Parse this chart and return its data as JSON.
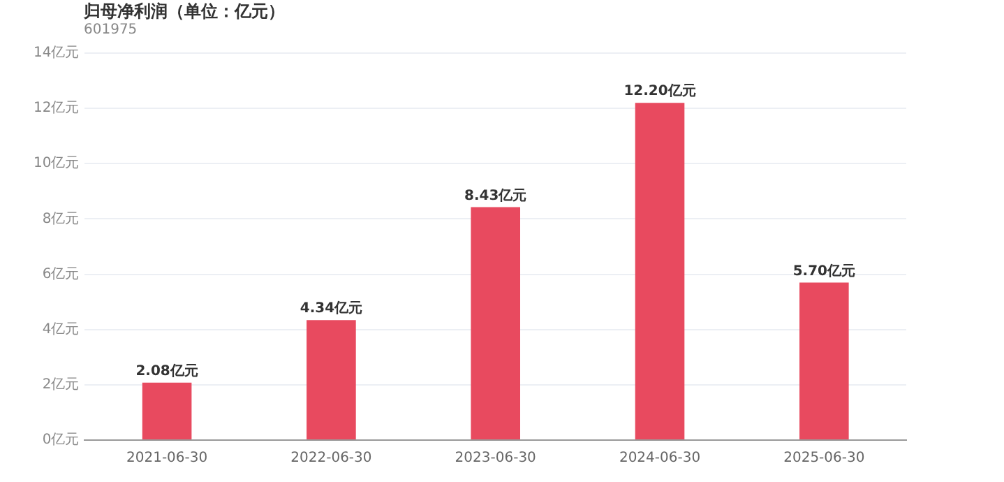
{
  "chart_data": {
    "type": "bar",
    "title": "归母净利润（单位：亿元）",
    "subtitle": "601975",
    "categories": [
      "2021-06-30",
      "2022-06-30",
      "2023-06-30",
      "2024-06-30",
      "2025-06-30"
    ],
    "values": [
      2.08,
      4.34,
      8.43,
      12.2,
      5.7
    ],
    "value_labels": [
      "2.08亿元",
      "4.34亿元",
      "8.43亿元",
      "12.20亿元",
      "5.70亿元"
    ],
    "color": "#e84a5f",
    "ylim": [
      0,
      14
    ],
    "yticks": [
      {
        "value": 0,
        "label": "0亿元"
      },
      {
        "value": 2,
        "label": "2亿元"
      },
      {
        "value": 4,
        "label": "4亿元"
      },
      {
        "value": 6,
        "label": "6亿元"
      },
      {
        "value": 8,
        "label": "8亿元"
      },
      {
        "value": 10,
        "label": "10亿元"
      },
      {
        "value": 12,
        "label": "12亿元"
      },
      {
        "value": 14,
        "label": "14亿元"
      }
    ],
    "grid": "y",
    "legend": false
  }
}
